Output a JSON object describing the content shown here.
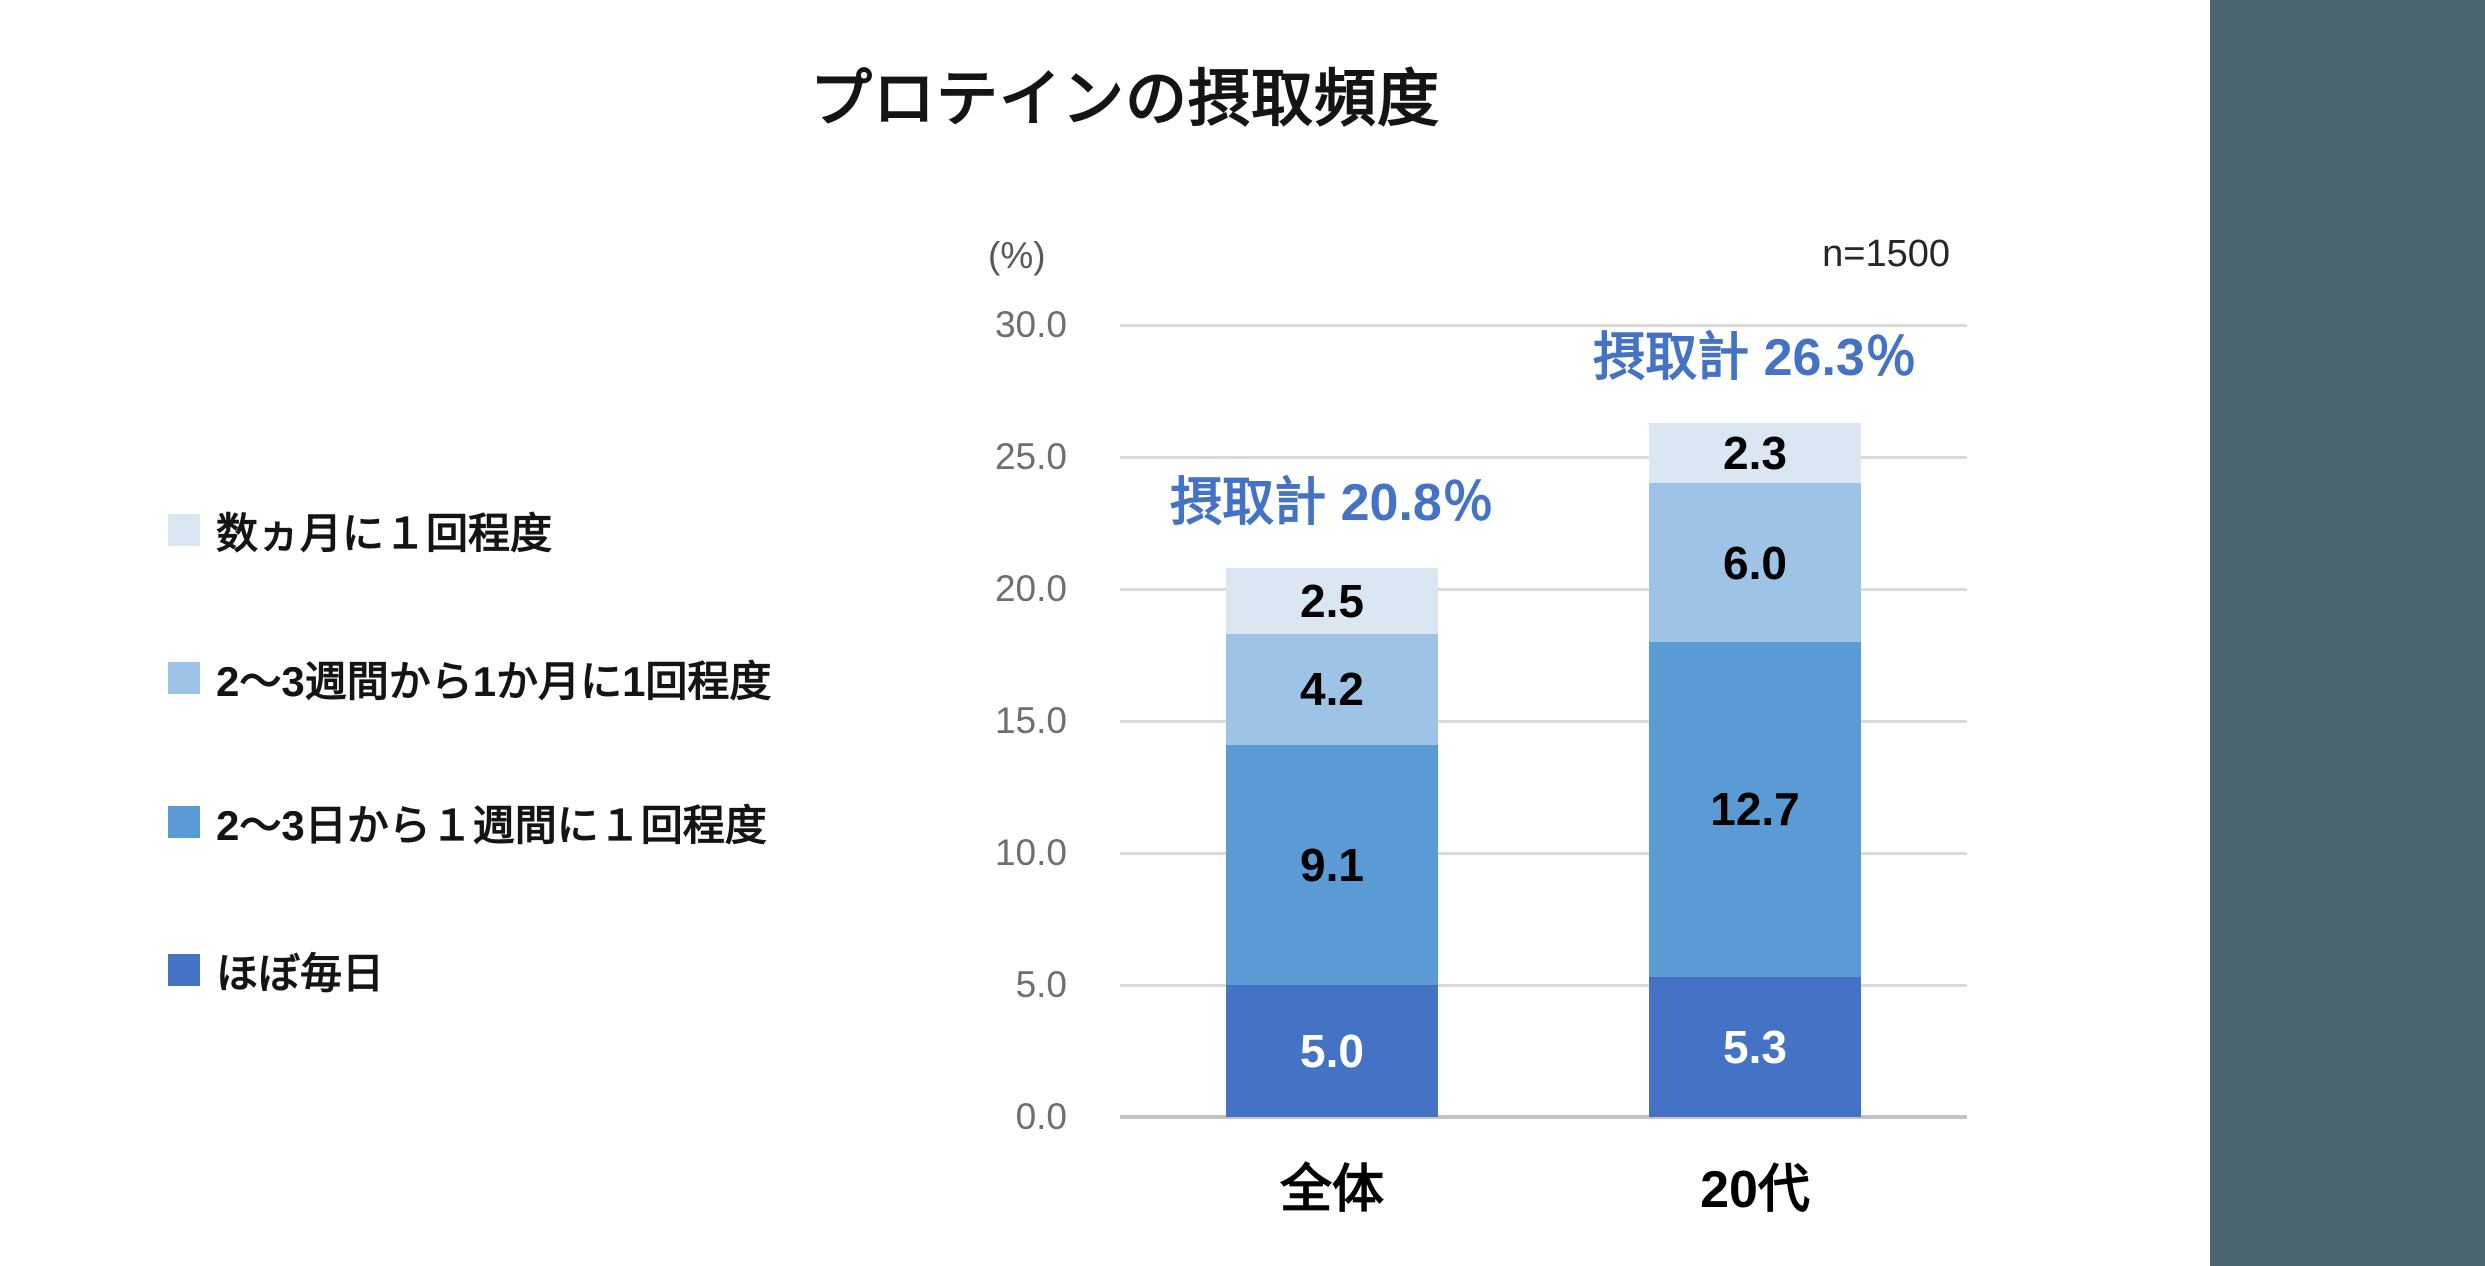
{
  "title": "プロテインの摂取頻度",
  "sample_label": "n=1500",
  "unit_label": "(%)",
  "legend": {
    "items": [
      {
        "label": "数ヵ月に１回程度",
        "color": "#DAE7F3"
      },
      {
        "label": "2〜3週間から1か月に1回程度",
        "color": "#9DC3E6"
      },
      {
        "label": "2〜3日から１週間に１回程度",
        "color": "#5B9BD5"
      },
      {
        "label": "ほぼ毎日",
        "color": "#4472C4"
      }
    ]
  },
  "chart_data": {
    "type": "bar",
    "stacked": true,
    "title": "プロテインの摂取頻度",
    "categories": [
      "全体",
      "20代"
    ],
    "series": [
      {
        "name": "ほぼ毎日",
        "color": "#4472C4",
        "label_color": "#FFFFFF",
        "values": [
          5.0,
          5.3
        ]
      },
      {
        "name": "2〜3日から１週間に１回程度",
        "color": "#5B9BD5",
        "label_color": "#000000",
        "values": [
          9.1,
          12.7
        ]
      },
      {
        "name": "2〜3週間から1か月に1回程度",
        "color": "#9DC3E6",
        "label_color": "#000000",
        "values": [
          4.2,
          6.0
        ]
      },
      {
        "name": "数ヵ月に１回程度",
        "color": "#DAE7F3",
        "label_color": "#000000",
        "values": [
          2.5,
          2.3
        ]
      }
    ],
    "totals": [
      {
        "category": "全体",
        "label": "摂取計 20.8％",
        "value": 20.8
      },
      {
        "category": "20代",
        "label": "摂取計 26.3％",
        "value": 26.3
      }
    ],
    "xlabel": "",
    "ylabel": "(%)",
    "ylim": [
      0,
      30
    ],
    "ytick_step": 5,
    "ytick_labels": [
      "0.0",
      "5.0",
      "10.0",
      "15.0",
      "20.0",
      "25.0",
      "30.0"
    ],
    "grid": true,
    "legend_position": "left",
    "sample_size": "n=1500"
  },
  "colors": {
    "annotation": "#4472C4",
    "sidebar": "#4B666E",
    "gridline": "#DADADA",
    "baseline": "#C4C4C4",
    "tick_text": "#6F6F6F"
  }
}
